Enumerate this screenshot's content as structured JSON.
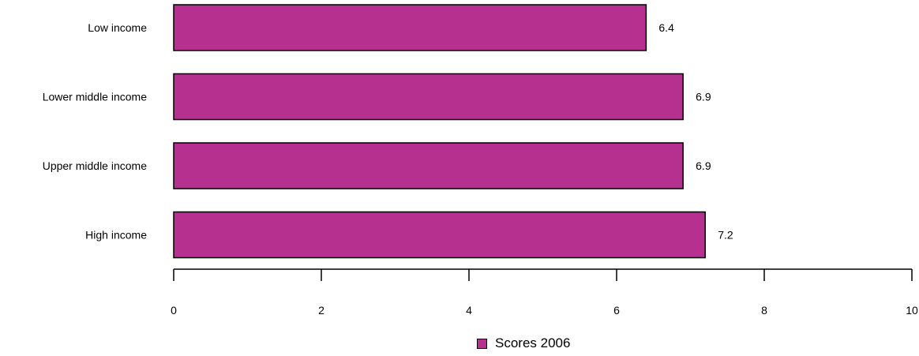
{
  "chart_data": {
    "type": "bar",
    "orientation": "horizontal",
    "categories": [
      "Low income",
      "Lower middle income",
      "Upper middle income",
      "High income"
    ],
    "series": [
      {
        "name": "Scores  2006",
        "values": [
          6.4,
          6.9,
          6.9,
          7.2
        ],
        "color": "#b5308f"
      }
    ],
    "data_labels": [
      "6.4",
      "6.9",
      "6.9",
      "7.2"
    ],
    "xlim": [
      0,
      10
    ],
    "x_ticks": [
      0,
      2,
      4,
      6,
      8,
      10
    ],
    "x_tick_labels": [
      "0",
      "2",
      "4",
      "6",
      "8",
      "10"
    ],
    "title": "",
    "xlabel": "",
    "ylabel": "",
    "grid": false,
    "legend_position": "bottom"
  }
}
